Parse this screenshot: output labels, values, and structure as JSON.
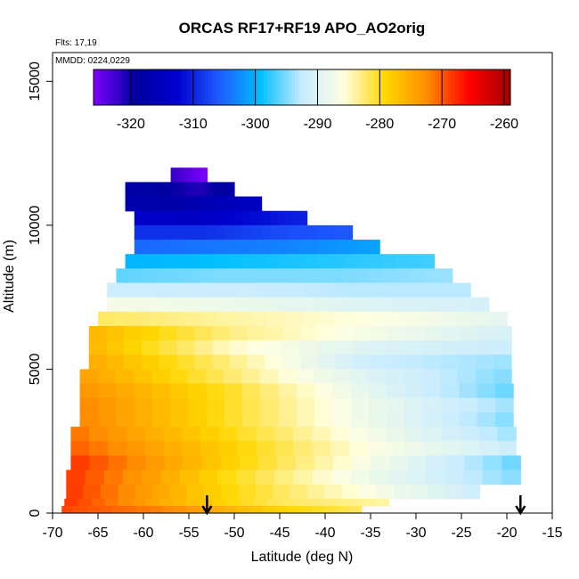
{
  "chart_data": {
    "type": "heatmap",
    "title": "ORCAS RF17+RF19 APO_AO2orig",
    "annotations": [
      "Flts: 17,19",
      "MMDD: 0224,0229"
    ],
    "xlabel": "Latitude (deg N)",
    "ylabel": "Altitude (m)",
    "xlim": [
      -70,
      -15
    ],
    "ylim": [
      0,
      16000
    ],
    "x_ticks": [
      -70,
      -65,
      -60,
      -55,
      -50,
      -45,
      -40,
      -35,
      -30,
      -25,
      -20,
      -15
    ],
    "y_ticks": [
      0,
      5000,
      10000,
      15000
    ],
    "colorbar": {
      "ticks": [
        -320,
        -310,
        -300,
        -290,
        -280,
        -270,
        -260
      ],
      "range": [
        -326,
        -259
      ],
      "colors": [
        "#7f00ff",
        "#0000a0",
        "#0000cd",
        "#1e5aff",
        "#00bfff",
        "#c8ecff",
        "#ffffe0",
        "#ffd700",
        "#ff8c00",
        "#ff0000",
        "#a00000"
      ]
    },
    "arrows_latitude": [
      -53,
      -18.5
    ],
    "altitude_bands": [
      {
        "alt_bottom": 11500,
        "alt_top": 12000,
        "lat_min": -57,
        "lat_max": -53,
        "values": [
          -322,
          -326
        ]
      },
      {
        "alt_bottom": 11000,
        "alt_top": 11500,
        "lat_min": -62,
        "lat_max": -50,
        "values": [
          -318,
          -319,
          -321,
          -318
        ]
      },
      {
        "alt_bottom": 10500,
        "alt_top": 11000,
        "lat_min": -62,
        "lat_max": -47,
        "values": [
          -317,
          -318,
          -316,
          -314
        ]
      },
      {
        "alt_bottom": 10000,
        "alt_top": 10500,
        "lat_min": -61,
        "lat_max": -42,
        "values": [
          -313,
          -314,
          -312,
          -310
        ]
      },
      {
        "alt_bottom": 9500,
        "alt_top": 10000,
        "lat_min": -61,
        "lat_max": -37,
        "values": [
          -309,
          -309,
          -307,
          -306
        ]
      },
      {
        "alt_bottom": 9000,
        "alt_top": 9500,
        "lat_min": -61,
        "lat_max": -34,
        "values": [
          -305,
          -304,
          -303,
          -301
        ]
      },
      {
        "alt_bottom": 8500,
        "alt_top": 9000,
        "lat_min": -62,
        "lat_max": -28,
        "values": [
          -300,
          -299,
          -298,
          -297
        ]
      },
      {
        "alt_bottom": 8000,
        "alt_top": 8500,
        "lat_min": -63,
        "lat_max": -26,
        "values": [
          -296,
          -295,
          -295,
          -294
        ]
      },
      {
        "alt_bottom": 7500,
        "alt_top": 8000,
        "lat_min": -64,
        "lat_max": -24,
        "values": [
          -292,
          -292,
          -293,
          -293
        ]
      },
      {
        "alt_bottom": 7000,
        "alt_top": 7500,
        "lat_min": -64,
        "lat_max": -22,
        "values": [
          -287,
          -288,
          -290,
          -291
        ]
      },
      {
        "alt_bottom": 6500,
        "alt_top": 7000,
        "lat_min": -65,
        "lat_max": -20,
        "values": [
          -282,
          -284,
          -286,
          -289
        ]
      },
      {
        "alt_bottom": 6000,
        "alt_top": 6500,
        "lat_min": -66,
        "lat_max": -19.5,
        "values": [
          -276,
          -283,
          -287,
          -291
        ]
      },
      {
        "alt_bottom": 5500,
        "alt_top": 6000,
        "lat_min": -66,
        "lat_max": -19.5,
        "values": [
          -276,
          -285,
          -290,
          -292
        ]
      },
      {
        "alt_bottom": 5000,
        "alt_top": 5500,
        "lat_min": -66,
        "lat_max": -19.5,
        "values": [
          -275,
          -283,
          -292,
          -294
        ]
      },
      {
        "alt_bottom": 4500,
        "alt_top": 5000,
        "lat_min": -67,
        "lat_max": -19.5,
        "values": [
          -274,
          -282,
          -290,
          -295
        ]
      },
      {
        "alt_bottom": 4000,
        "alt_top": 4500,
        "lat_min": -67,
        "lat_max": -19.3,
        "values": [
          -273,
          -280,
          -289,
          -296
        ]
      },
      {
        "alt_bottom": 3500,
        "alt_top": 4000,
        "lat_min": -67,
        "lat_max": -19.3,
        "values": [
          -272,
          -280,
          -288,
          -294
        ]
      },
      {
        "alt_bottom": 3000,
        "alt_top": 3500,
        "lat_min": -67,
        "lat_max": -19.3,
        "values": [
          -272,
          -280,
          -288,
          -295
        ]
      },
      {
        "alt_bottom": 2500,
        "alt_top": 3000,
        "lat_min": -68,
        "lat_max": -19,
        "values": [
          -271,
          -279,
          -287,
          -294
        ]
      },
      {
        "alt_bottom": 2000,
        "alt_top": 2500,
        "lat_min": -68,
        "lat_max": -19,
        "values": [
          -270,
          -278,
          -286,
          -292
        ]
      },
      {
        "alt_bottom": 1500,
        "alt_top": 2000,
        "lat_min": -68,
        "lat_max": -18.5,
        "values": [
          -268,
          -278,
          -287,
          -296
        ]
      },
      {
        "alt_bottom": 1000,
        "alt_top": 1500,
        "lat_min": -68.5,
        "lat_max": -18.5,
        "values": [
          -268,
          -279,
          -288,
          -295
        ]
      },
      {
        "alt_bottom": 500,
        "alt_top": 1000,
        "lat_min": -68.5,
        "lat_max": -23,
        "values": [
          -268,
          -278,
          -285,
          -292
        ]
      },
      {
        "alt_bottom": 250,
        "alt_top": 500,
        "lat_min": -68.7,
        "lat_max": -33,
        "values": [
          -268,
          -276,
          -282,
          -284
        ]
      },
      {
        "alt_bottom": 0,
        "alt_top": 250,
        "lat_min": -69,
        "lat_max": -36,
        "values": [
          -269,
          -272,
          -278,
          -282
        ]
      }
    ]
  }
}
